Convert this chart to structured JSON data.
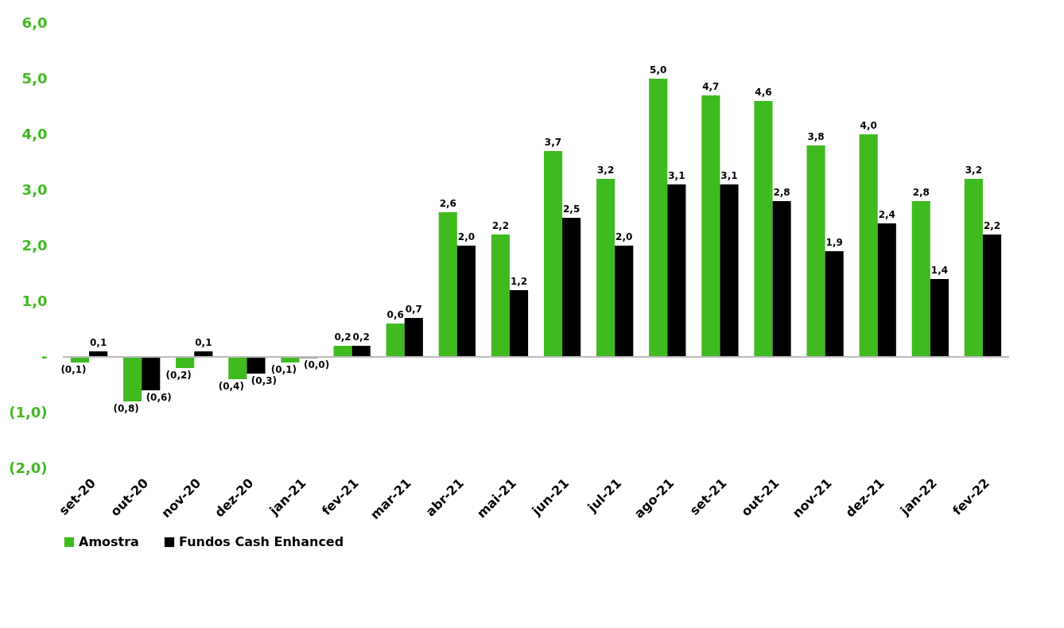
{
  "chart_data": {
    "type": "bar",
    "categories": [
      "set-20",
      "out-20",
      "nov-20",
      "dez-20",
      "jan-21",
      "fev-21",
      "mar-21",
      "abr-21",
      "mai-21",
      "jun-21",
      "jul-21",
      "ago-21",
      "set-21",
      "out-21",
      "nov-21",
      "dez-21",
      "jan-22",
      "fev-22"
    ],
    "series": [
      {
        "name": "Amostra",
        "color": "#3fba1f",
        "values": [
          -0.1,
          -0.8,
          -0.2,
          -0.4,
          -0.1,
          0.2,
          0.6,
          2.6,
          2.2,
          3.7,
          3.2,
          5.0,
          4.7,
          4.6,
          3.8,
          4.0,
          2.8,
          3.2
        ],
        "value_labels": [
          "(0,1)",
          "(0,8)",
          "(0,2)",
          "(0,4)",
          "(0,1)",
          "0,2",
          "0,6",
          "2,6",
          "2,2",
          "3,7",
          "3,2",
          "5,0",
          "4,7",
          "4,6",
          "3,8",
          "4,0",
          "2,8",
          "3,2"
        ]
      },
      {
        "name": "Fundos Cash Enhanced",
        "color": "#000000",
        "values": [
          0.1,
          -0.6,
          0.1,
          -0.3,
          -0.02,
          0.2,
          0.7,
          2.0,
          1.2,
          2.5,
          2.0,
          3.1,
          3.1,
          2.8,
          1.9,
          2.4,
          1.4,
          2.2
        ],
        "value_labels": [
          "0,1",
          "(0,6)",
          "0,1",
          "(0,3)",
          "(0,0)",
          "0,2",
          "0,7",
          "2,0",
          "1,2",
          "2,5",
          "2,0",
          "3,1",
          "3,1",
          "2,8",
          "1,9",
          "2,4",
          "1,4",
          "2,2"
        ]
      }
    ],
    "ylim": [
      -2,
      6
    ],
    "yticks": [
      {
        "value": -2,
        "label": "(2,0)"
      },
      {
        "value": -1,
        "label": "(1,0)"
      },
      {
        "value": 0,
        "label": "-"
      },
      {
        "value": 1,
        "label": "1,0"
      },
      {
        "value": 2,
        "label": "2,0"
      },
      {
        "value": 3,
        "label": "3,0"
      },
      {
        "value": 4,
        "label": "4,0"
      },
      {
        "value": 5,
        "label": "5,0"
      },
      {
        "value": 6,
        "label": "6,0"
      }
    ],
    "grid": false,
    "ref_lines": [
      {
        "axis": "y",
        "value": 0,
        "color": "#bbbbbb"
      }
    ],
    "legend": "bottom"
  }
}
